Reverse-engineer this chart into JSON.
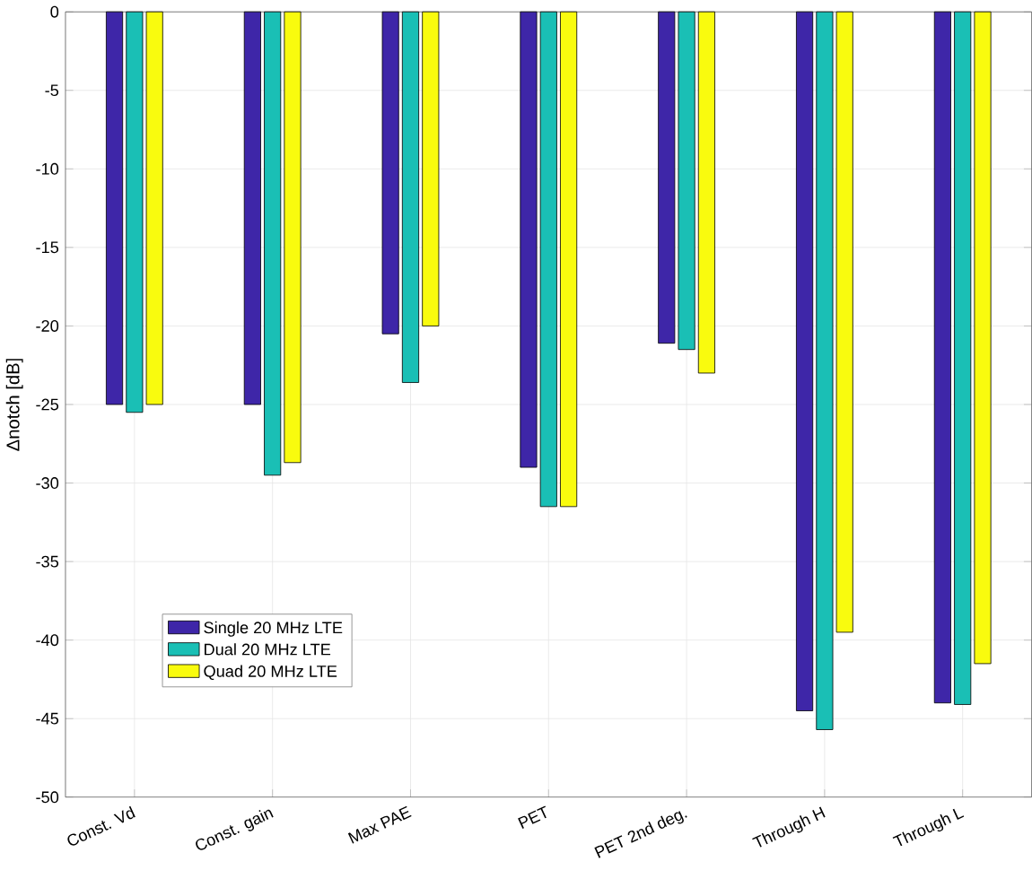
{
  "chart_data": {
    "type": "bar",
    "ylabel": "Δnotch [dB]",
    "categories": [
      "Const. Vd",
      "Const. gain",
      "Max PAE",
      "PET",
      "PET 2nd deg.",
      "Through H",
      "Through L"
    ],
    "series": [
      {
        "name": "Single 20 MHz LTE",
        "color": "#3e26a8",
        "values": [
          -25,
          -25,
          -20.5,
          -29,
          -21.1,
          -44.5,
          -44
        ]
      },
      {
        "name": "Dual 20 MHz LTE",
        "color": "#1abfb5",
        "values": [
          -25.5,
          -29.5,
          -23.6,
          -31.5,
          -21.5,
          -45.7,
          -44.1
        ]
      },
      {
        "name": "Quad 20 MHz LTE",
        "color": "#f9fb0e",
        "values": [
          -25,
          -28.7,
          -20,
          -31.5,
          -23,
          -39.5,
          -41.5
        ]
      }
    ],
    "ylim": [
      -50,
      0
    ],
    "yticks": [
      -50,
      -45,
      -40,
      -35,
      -30,
      -25,
      -20,
      -15,
      -10,
      -5,
      0
    ],
    "grid": true,
    "legend": "bottom left"
  }
}
